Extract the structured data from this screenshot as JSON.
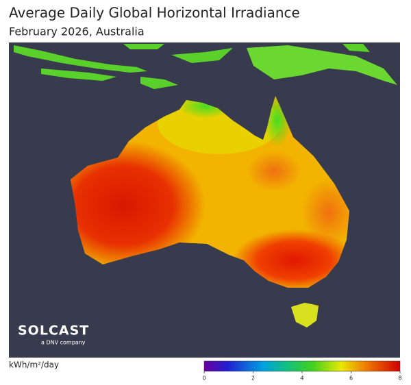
{
  "title": "Average Daily Global Horizontal Irradiance",
  "subtitle": "February 2026, Australia",
  "logo": {
    "name": "SOLCAST",
    "tagline": "a DNV company"
  },
  "legend": {
    "unit": "kWh/m²/day",
    "range": [
      0,
      8
    ],
    "ticks": [
      0,
      2,
      4,
      6,
      8
    ]
  }
}
